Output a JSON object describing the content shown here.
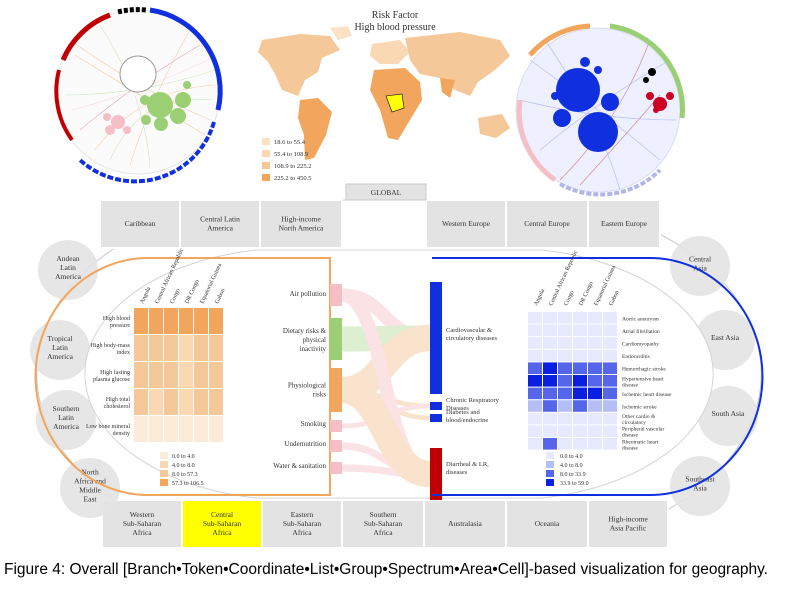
{
  "header": {
    "title": "Risk Factor",
    "subtitle": "High blood pressure"
  },
  "map_legend": [
    "18.6 to 55.4",
    "55.4 to 108.9",
    "108.9 to 225.2",
    "225.2 to 450.5"
  ],
  "colors": {
    "orange": "#f2a55c",
    "light_orange": "#f9d8b3",
    "blue": "#1030e0",
    "green": "#9bcf74",
    "pink": "#f6bfc6",
    "ring_gray": "#d9d9d9",
    "highlight": "#ffff00"
  },
  "global_label": "GLOBAL",
  "regions": {
    "top": [
      "Caribbean",
      "Central Latin America",
      "High-income North America",
      "Western Europe",
      "Central Europe",
      "Eastern Europe"
    ],
    "right": [
      "Central Asia",
      "East Asia",
      "South Asia",
      "Southeast Asia"
    ],
    "bottom": [
      "Western Sub-Saharan Africa",
      "Central Sub-Saharan Africa",
      "Eastern Sub-Saharan Africa",
      "Southern Sub-Saharan Africa",
      "Australasia",
      "Oceania",
      "High-income Asia Pacific"
    ],
    "left": [
      "Andean Latin America",
      "Tropical Latin America",
      "Southern Latin America",
      "North Africa and Middle East"
    ]
  },
  "left_matrix": {
    "countries": [
      "Angola",
      "Central African Republic",
      "Congo",
      "DR Congo",
      "Equatorial Guinea",
      "Gabon"
    ],
    "rows": [
      "High blood pressure",
      "High body-mass index",
      "High fasting plasma glucose",
      "High total cholesterol",
      "Low bone mineral density"
    ],
    "levels": [
      [
        3,
        3,
        3,
        3,
        3,
        3
      ],
      [
        2,
        2,
        2,
        1,
        2,
        2
      ],
      [
        2,
        2,
        2,
        1,
        2,
        2
      ],
      [
        2,
        1,
        2,
        1,
        2,
        2
      ],
      [
        0,
        0,
        0,
        0,
        0,
        0
      ]
    ],
    "legend": [
      "0.0 to 4.0",
      "4.0 to 8.0",
      "8.0 to 57.3",
      "57.3 to 106.5"
    ]
  },
  "sankey": {
    "risks": [
      "Air pollution",
      "Dietary risks & physical inactivity",
      "Physiological risks",
      "Smoking",
      "Undernutrition",
      "Water & sanitation"
    ],
    "diseases": [
      "Cardiovascular & circulatory diseases",
      "Chronic Respiratory Diseases",
      "Diabetes and blood/endocrine",
      "Diarrheal & LR, diseases"
    ]
  },
  "right_matrix": {
    "countries": [
      "Angola",
      "Central African Republic",
      "Congo",
      "DR Congo",
      "Equatorial Guinea",
      "Gabon"
    ],
    "rows": [
      "Aortic aneurysm",
      "Atrial fibrillation",
      "Cardiomyopathy",
      "Endocarditis",
      "Hemorrhagic stroke",
      "Hypertensive heart disease",
      "Ischemic heart disease",
      "Ischemic stroke",
      "Other cardio & circulatory",
      "Peripheral vascular disease",
      "Rheumatic heart disease"
    ],
    "levels": [
      [
        0,
        0,
        0,
        0,
        0,
        0
      ],
      [
        0,
        0,
        0,
        0,
        0,
        0
      ],
      [
        0,
        0,
        0,
        0,
        0,
        0
      ],
      [
        0,
        0,
        0,
        0,
        0,
        0
      ],
      [
        2,
        3,
        2,
        2,
        2,
        2
      ],
      [
        3,
        3,
        2,
        3,
        2,
        2
      ],
      [
        2,
        2,
        2,
        3,
        3,
        2
      ],
      [
        1,
        2,
        1,
        2,
        1,
        1
      ],
      [
        0,
        0,
        0,
        0,
        0,
        0
      ],
      [
        0,
        0,
        0,
        0,
        0,
        0
      ],
      [
        0,
        2,
        0,
        0,
        0,
        0
      ]
    ],
    "legend": [
      "0.0 to 4.0",
      "4.0 to 8.0",
      "8.0 to 33.9",
      "33.9 to 59.0"
    ]
  },
  "caption": "Figure 4: Overall [Branch•Token•Coordinate•List•Group•Spectrum•Area•Cell]-based visualization for geography."
}
